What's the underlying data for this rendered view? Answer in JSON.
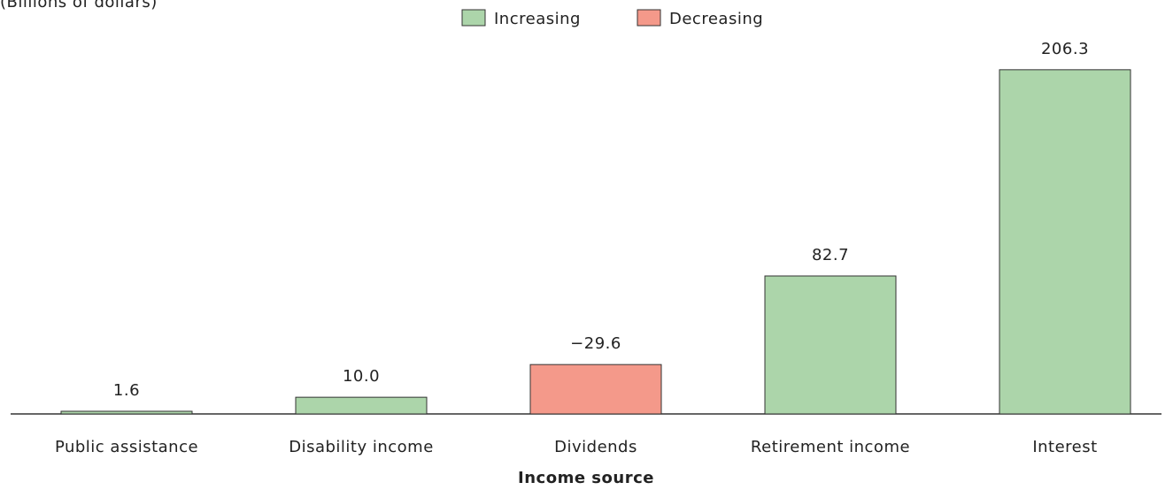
{
  "chart_data": {
    "type": "bar",
    "subtitle": "(Billions of dollars)",
    "xlabel": "Income source",
    "categories": [
      "Public assistance",
      "Disability income",
      "Dividends",
      "Retirement income",
      "Interest"
    ],
    "values": [
      1.6,
      10.0,
      -29.6,
      82.7,
      206.3
    ],
    "value_labels": [
      "1.6",
      "10.0",
      "−29.6",
      "82.7",
      "206.3"
    ],
    "legend": [
      {
        "name": "Increasing",
        "color": "#acd5aa"
      },
      {
        "name": "Decreasing",
        "color": "#f4998a"
      }
    ],
    "ylim": [
      0,
      220
    ]
  }
}
